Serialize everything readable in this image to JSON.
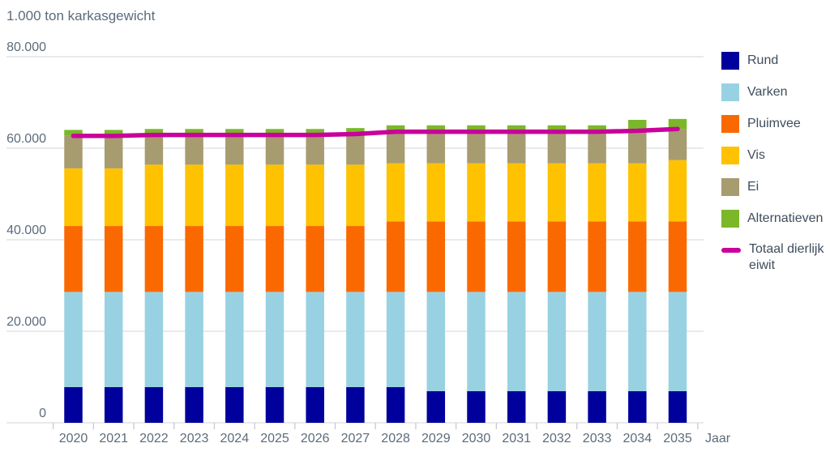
{
  "chart_data": {
    "type": "bar",
    "stacked": true,
    "title": "1.000 ton karkasgewicht",
    "xlabel": "Jaar",
    "categories": [
      "2020",
      "2021",
      "2022",
      "2023",
      "2024",
      "2025",
      "2026",
      "2027",
      "2028",
      "2029",
      "2030",
      "2031",
      "2032",
      "2033",
      "2034",
      "2035"
    ],
    "series": [
      {
        "name": "Rund",
        "color": "#00009C",
        "values": [
          7800,
          7800,
          7800,
          7800,
          7800,
          7800,
          7800,
          7800,
          7800,
          6900,
          6900,
          6900,
          6900,
          6900,
          6900,
          6900
        ]
      },
      {
        "name": "Varken",
        "color": "#98D2E2",
        "values": [
          20800,
          20800,
          20800,
          20800,
          20800,
          20800,
          20800,
          20800,
          20800,
          21700,
          21700,
          21700,
          21700,
          21700,
          21700,
          21700
        ]
      },
      {
        "name": "Pluimvee",
        "color": "#FA6900",
        "values": [
          14400,
          14400,
          14400,
          14400,
          14400,
          14400,
          14400,
          14400,
          15400,
          15400,
          15400,
          15400,
          15400,
          15400,
          15400,
          15400
        ]
      },
      {
        "name": "Vis",
        "color": "#FEC200",
        "values": [
          12600,
          12600,
          13400,
          13400,
          13400,
          13400,
          13400,
          13400,
          12700,
          12700,
          12700,
          12700,
          12700,
          12700,
          12700,
          13400
        ]
      },
      {
        "name": "Ei",
        "color": "#A79B70",
        "values": [
          7100,
          7100,
          6500,
          6500,
          6500,
          6500,
          6500,
          6700,
          6900,
          6900,
          6900,
          6900,
          6900,
          6900,
          7100,
          6800
        ]
      },
      {
        "name": "Alternatieven",
        "color": "#7AB829",
        "values": [
          1300,
          1300,
          1300,
          1300,
          1300,
          1300,
          1300,
          1300,
          1400,
          1400,
          1400,
          1400,
          1400,
          1400,
          2400,
          2200
        ]
      },
      {
        "name": "Totaal dierlijk eiwit",
        "type": "line",
        "color": "#C9009B",
        "values": [
          62700,
          62700,
          62900,
          62900,
          62900,
          62900,
          62900,
          63100,
          63600,
          63600,
          63600,
          63600,
          63600,
          63600,
          63800,
          64200
        ]
      }
    ],
    "ylim": [
      0,
      80000
    ],
    "ytick_values": [
      0,
      20000,
      40000,
      60000,
      80000
    ],
    "ytick_labels": [
      "0",
      "20.000",
      "40.000",
      "60.000",
      "80.000"
    ],
    "grid": true,
    "legend_position": "right",
    "colors": {
      "gridline": "#DADEE1",
      "tick": "#C6CBD0",
      "axis_text": "#5C6B7B",
      "legend_text": "#3F4D5C"
    }
  }
}
